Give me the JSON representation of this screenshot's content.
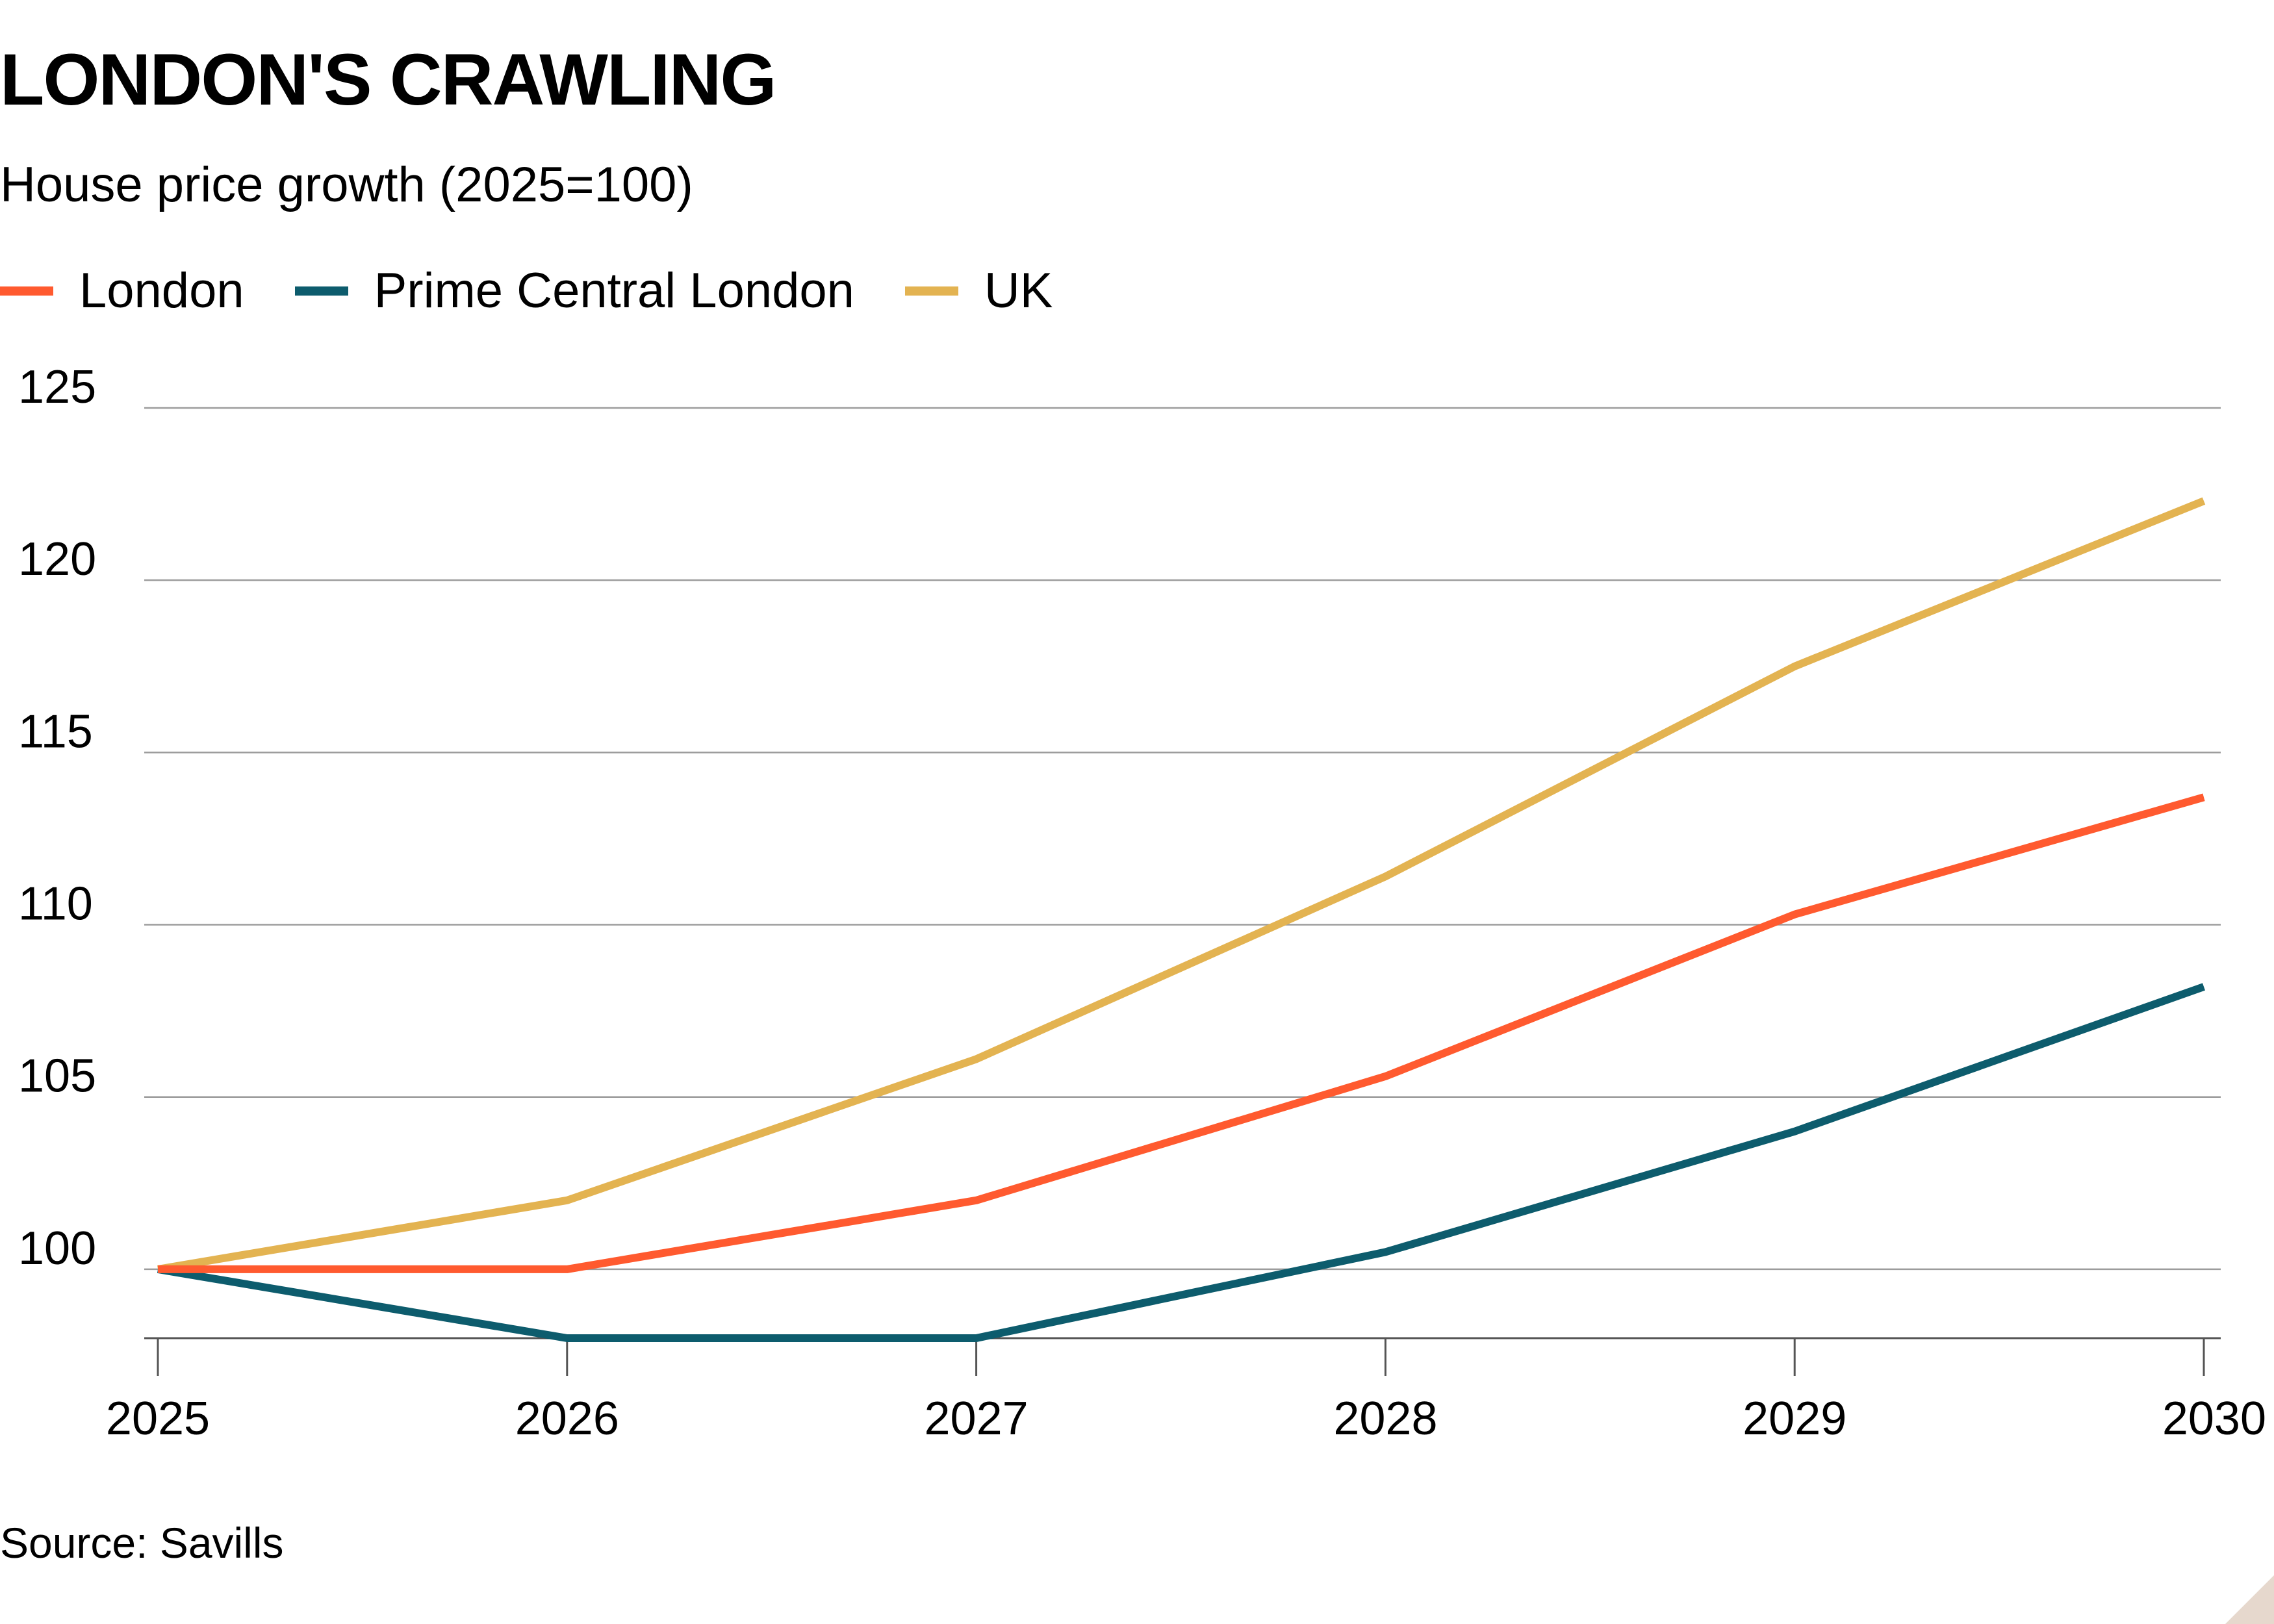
{
  "title": "LONDON'S CRAWLING",
  "subtitle": "House price growth (2025=100)",
  "source": "Source: Savills",
  "colors": {
    "London": "#ff5a2f",
    "Prime Central London": "#0d5c6d",
    "UK": "#e3b351",
    "gridline": "#9c9c9c",
    "axis": "#555555",
    "corner": "#e6d8cd"
  },
  "chart_data": {
    "type": "line",
    "title": "LONDON'S CRAWLING",
    "subtitle": "House price growth (2025=100)",
    "xlabel": "",
    "ylabel": "",
    "x": [
      2025,
      2026,
      2027,
      2028,
      2029,
      2030
    ],
    "x_tick_labels": [
      "2025",
      "2026",
      "2027",
      "2028",
      "2029",
      "2030"
    ],
    "y_ticks": [
      100,
      105,
      110,
      115,
      120,
      125
    ],
    "ylim": [
      98,
      125
    ],
    "grid": true,
    "legend_position": "top-left",
    "series": [
      {
        "name": "London",
        "values": [
          100,
          100,
          102,
          105.6,
          110.3,
          113.7
        ]
      },
      {
        "name": "Prime Central London",
        "values": [
          100,
          98,
          98,
          100.5,
          104,
          108.2
        ]
      },
      {
        "name": "UK",
        "values": [
          100,
          102,
          106.1,
          111.4,
          117.5,
          122.3
        ]
      }
    ]
  }
}
